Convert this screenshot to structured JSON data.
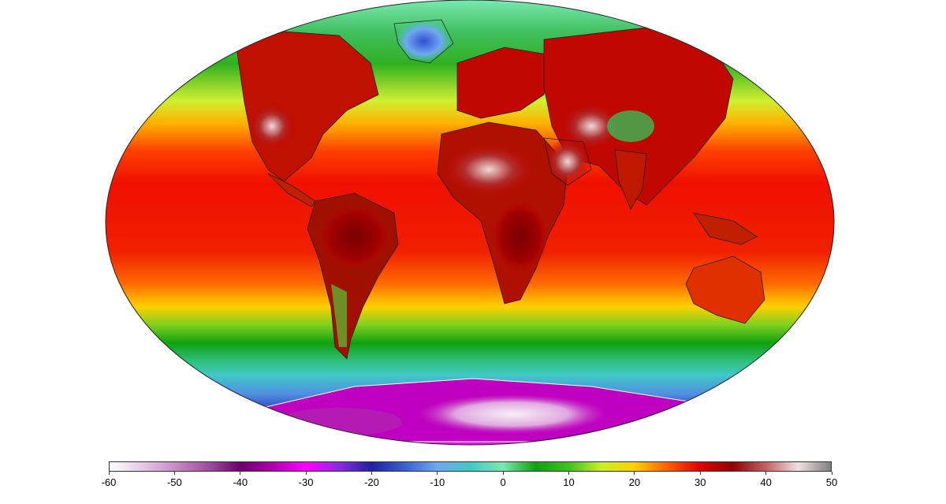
{
  "map": {
    "projection": "robinson-like ellipse",
    "colorbar": {
      "min": -60,
      "max": 50,
      "ticks": [
        "-60",
        "-50",
        "-40",
        "-30",
        "-20",
        "-10",
        "0",
        "10",
        "20",
        "30",
        "40",
        "50"
      ],
      "tick_values": [
        -60,
        -50,
        -40,
        -30,
        -20,
        -10,
        0,
        10,
        20,
        30,
        40,
        50
      ],
      "stops": [
        {
          "v": -60,
          "c": "#ffffff"
        },
        {
          "v": -55,
          "c": "#e6c9e6"
        },
        {
          "v": -50,
          "c": "#c88cc8"
        },
        {
          "v": -45,
          "c": "#a04ea0"
        },
        {
          "v": -40,
          "c": "#6b006b"
        },
        {
          "v": -35,
          "c": "#b000b0"
        },
        {
          "v": -30,
          "c": "#ff00ff"
        },
        {
          "v": -25,
          "c": "#8a2be2"
        },
        {
          "v": -20,
          "c": "#2020a0"
        },
        {
          "v": -15,
          "c": "#3a5fd0"
        },
        {
          "v": -10,
          "c": "#70a8f0"
        },
        {
          "v": -5,
          "c": "#40c8c8"
        },
        {
          "v": 0,
          "c": "#7ae8b0"
        },
        {
          "v": 5,
          "c": "#10a010"
        },
        {
          "v": 10,
          "c": "#40c020"
        },
        {
          "v": 15,
          "c": "#c8f028"
        },
        {
          "v": 20,
          "c": "#ffd000"
        },
        {
          "v": 25,
          "c": "#ff6000"
        },
        {
          "v": 30,
          "c": "#e00000"
        },
        {
          "v": 35,
          "c": "#900000"
        },
        {
          "v": 40,
          "c": "#c06060"
        },
        {
          "v": 45,
          "c": "#f0e0e0"
        },
        {
          "v": 50,
          "c": "#808080"
        }
      ]
    }
  }
}
